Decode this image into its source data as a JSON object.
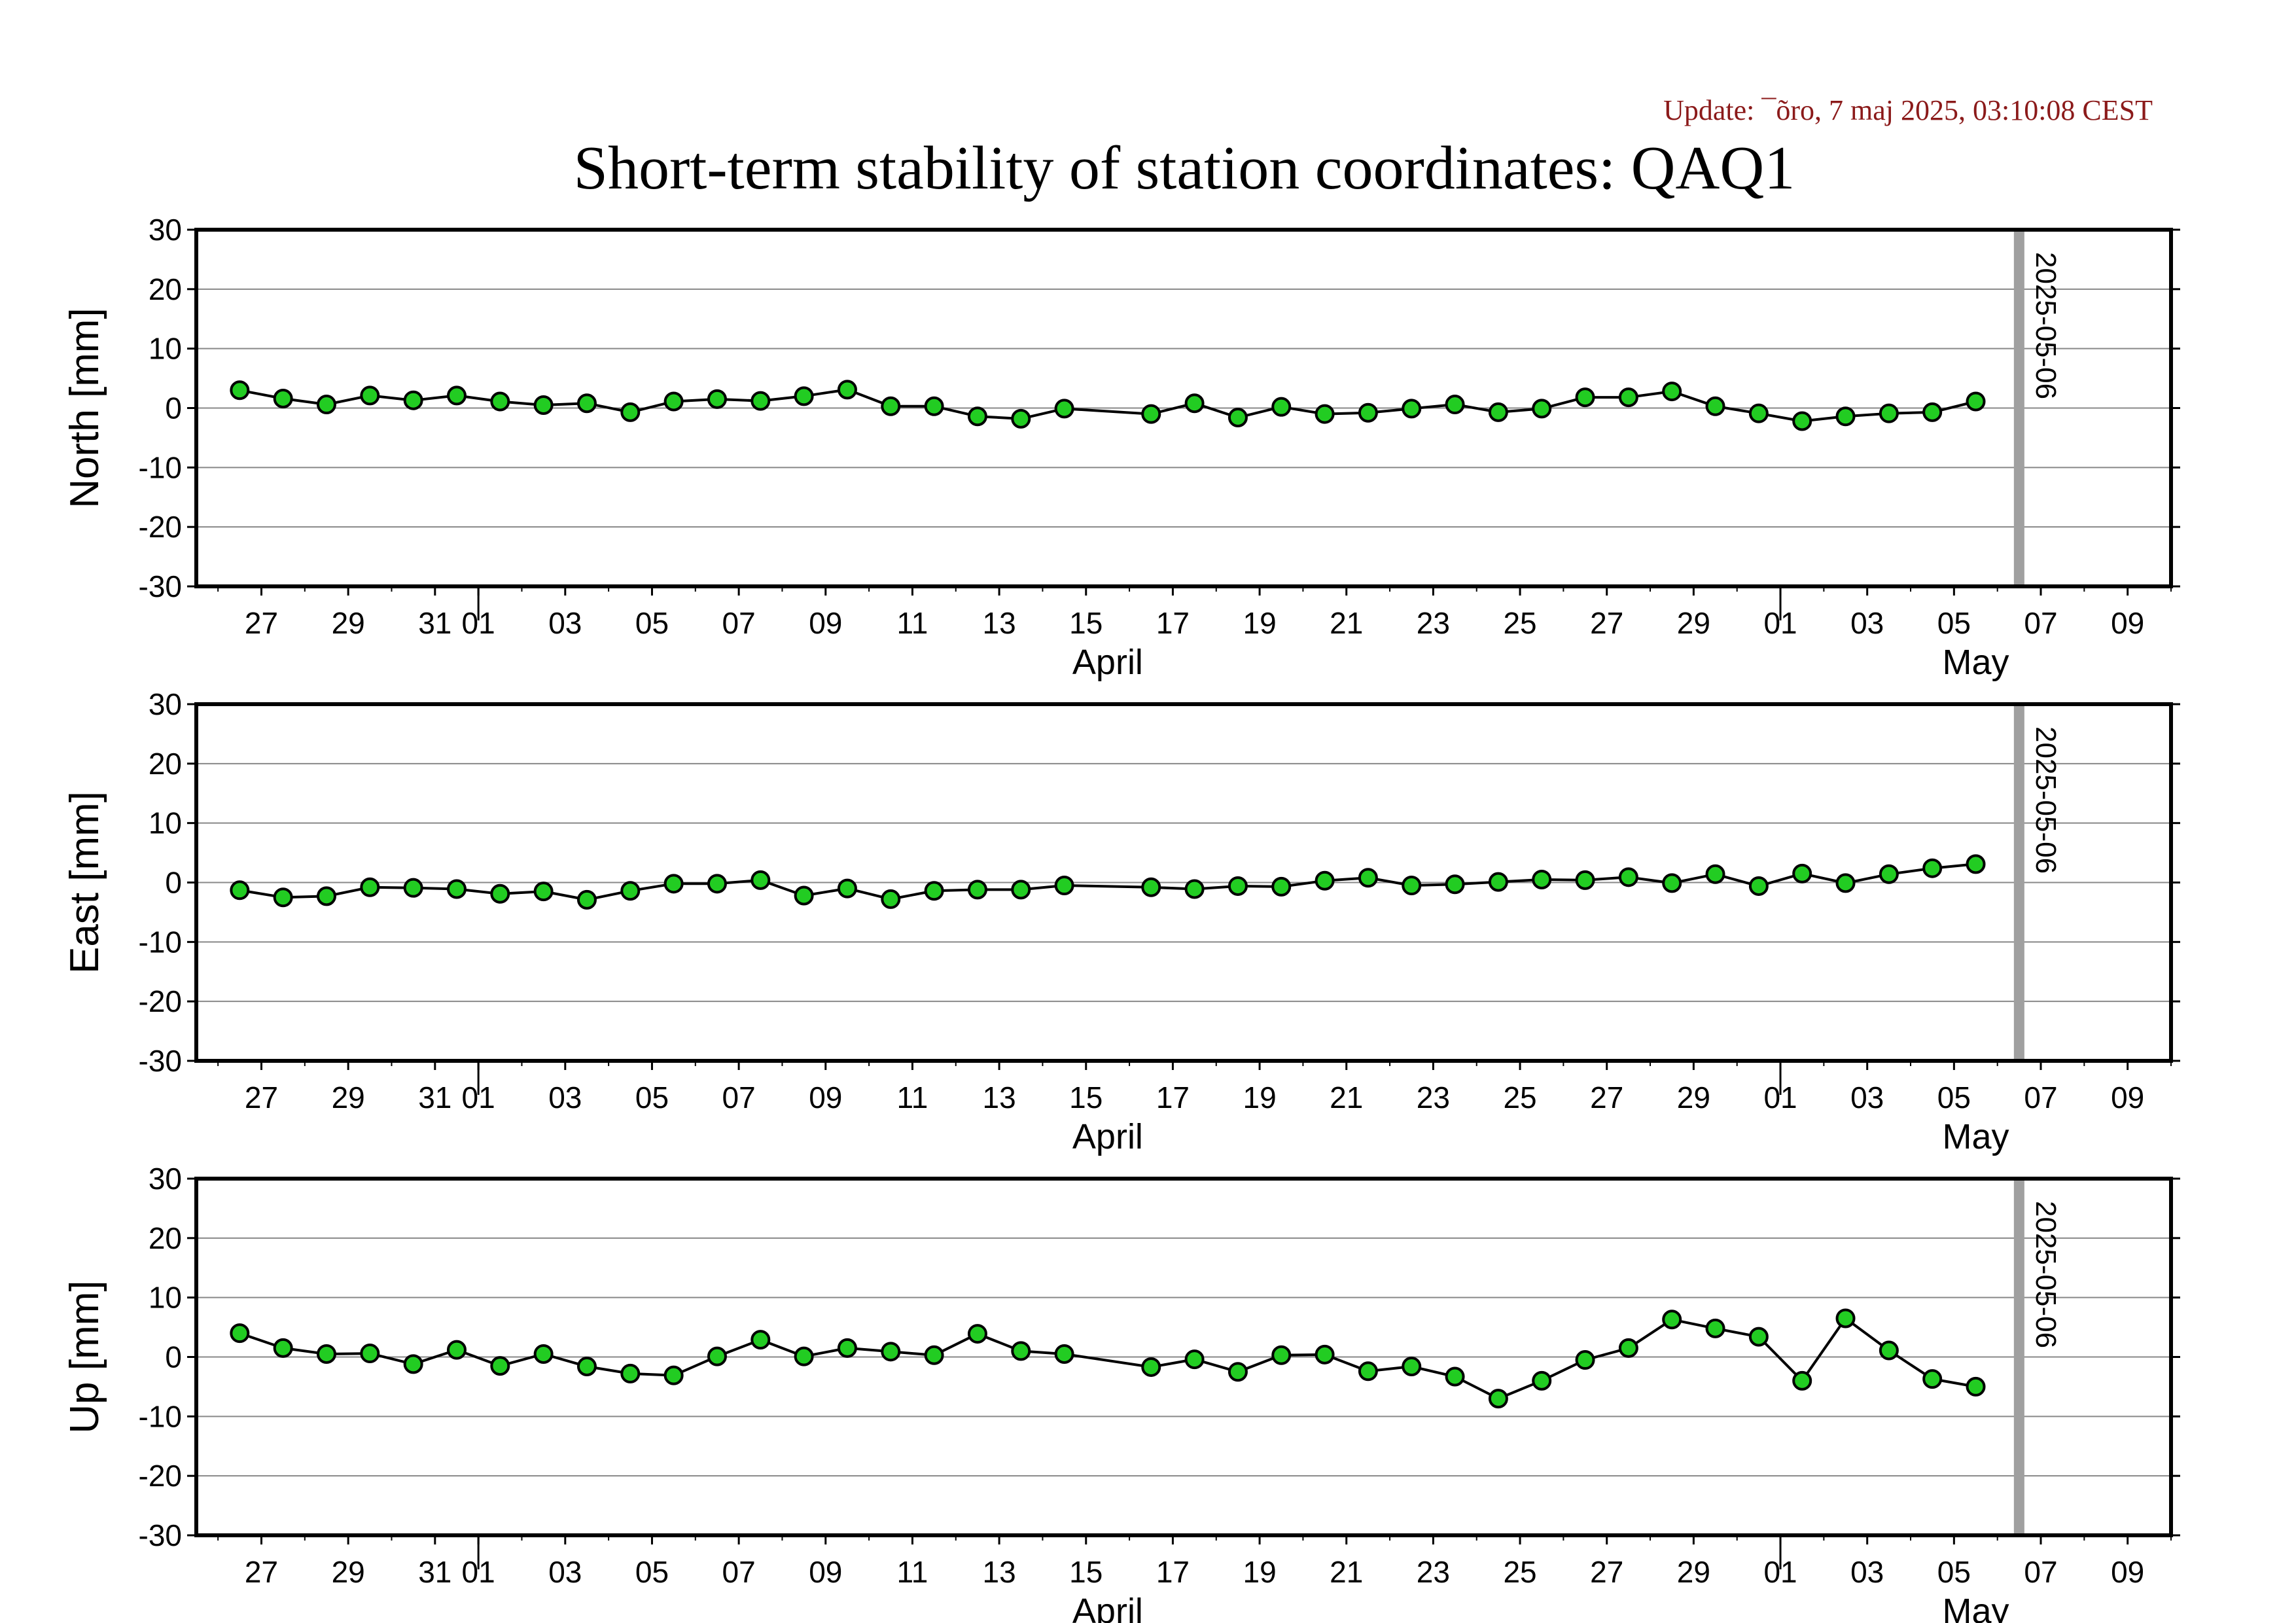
{
  "page": {
    "update_text": "Update: ¯õro, 7 maj 2025, 03:10:08 CEST",
    "title": "Short-term stability of station coordinates: QAQ1",
    "colors": {
      "update_text": "#8b1a1a",
      "marker_fill": "#22cc22",
      "marker_stroke": "#000000",
      "line": "#000000",
      "grid": "#888888",
      "date_bar": "#a0a0a0"
    }
  },
  "chart_data": [
    {
      "type": "line",
      "ylabel": "North [mm]",
      "ylim": [
        -30,
        30
      ],
      "yticks": [
        30,
        20,
        10,
        0,
        -10,
        -20,
        -30
      ],
      "xlim": [
        "2025-03-25T12:00",
        "2025-05-10T00:00"
      ],
      "xticks": [
        "27",
        "29",
        "31",
        "01",
        "03",
        "05",
        "07",
        "09",
        "11",
        "13",
        "15",
        "17",
        "19",
        "21",
        "23",
        "25",
        "27",
        "29",
        "01",
        "03",
        "05",
        "07",
        "09"
      ],
      "month_labels": [
        "April",
        "May"
      ],
      "grid": "horizontal",
      "date_marker": "2025-05-06",
      "series": [
        {
          "x": [
            "2025-03-26",
            "2025-03-27",
            "2025-03-28",
            "2025-03-29",
            "2025-03-30",
            "2025-03-31",
            "2025-04-01",
            "2025-04-02",
            "2025-04-03",
            "2025-04-04",
            "2025-04-05",
            "2025-04-06",
            "2025-04-07",
            "2025-04-08",
            "2025-04-09",
            "2025-04-10",
            "2025-04-11",
            "2025-04-12",
            "2025-04-13",
            "2025-04-14",
            "2025-04-16",
            "2025-04-17",
            "2025-04-18",
            "2025-04-19",
            "2025-04-20",
            "2025-04-21",
            "2025-04-22",
            "2025-04-23",
            "2025-04-24",
            "2025-04-25",
            "2025-04-26",
            "2025-04-27",
            "2025-04-28",
            "2025-04-29",
            "2025-04-30",
            "2025-05-01",
            "2025-05-02",
            "2025-05-03",
            "2025-05-04",
            "2025-05-05"
          ],
          "values": [
            3.0,
            1.6,
            0.6,
            2.1,
            1.3,
            2.1,
            1.1,
            0.5,
            0.8,
            -0.7,
            1.1,
            1.5,
            1.2,
            2.0,
            3.1,
            0.3,
            0.3,
            -1.4,
            -1.8,
            -0.1,
            -1.0,
            0.8,
            -1.6,
            0.2,
            -1.0,
            -0.8,
            -0.1,
            0.6,
            -0.7,
            -0.1,
            1.8,
            1.8,
            2.8,
            0.3,
            -0.9,
            -2.2,
            -1.4,
            -0.9,
            -0.7,
            1.1
          ]
        }
      ]
    },
    {
      "type": "line",
      "ylabel": "East [mm]",
      "ylim": [
        -30,
        30
      ],
      "yticks": [
        30,
        20,
        10,
        0,
        -10,
        -20,
        -30
      ],
      "xlim": [
        "2025-03-25T12:00",
        "2025-05-10T00:00"
      ],
      "xticks": [
        "27",
        "29",
        "31",
        "01",
        "03",
        "05",
        "07",
        "09",
        "11",
        "13",
        "15",
        "17",
        "19",
        "21",
        "23",
        "25",
        "27",
        "29",
        "01",
        "03",
        "05",
        "07",
        "09"
      ],
      "month_labels": [
        "April",
        "May"
      ],
      "grid": "horizontal",
      "date_marker": "2025-05-06",
      "series": [
        {
          "x": [
            "2025-03-26",
            "2025-03-27",
            "2025-03-28",
            "2025-03-29",
            "2025-03-30",
            "2025-03-31",
            "2025-04-01",
            "2025-04-02",
            "2025-04-03",
            "2025-04-04",
            "2025-04-05",
            "2025-04-06",
            "2025-04-07",
            "2025-04-08",
            "2025-04-09",
            "2025-04-10",
            "2025-04-11",
            "2025-04-12",
            "2025-04-13",
            "2025-04-14",
            "2025-04-16",
            "2025-04-17",
            "2025-04-18",
            "2025-04-19",
            "2025-04-20",
            "2025-04-21",
            "2025-04-22",
            "2025-04-23",
            "2025-04-24",
            "2025-04-25",
            "2025-04-26",
            "2025-04-27",
            "2025-04-28",
            "2025-04-29",
            "2025-04-30",
            "2025-05-01",
            "2025-05-02",
            "2025-05-03",
            "2025-05-04",
            "2025-05-05"
          ],
          "values": [
            -1.3,
            -2.5,
            -2.3,
            -0.8,
            -0.9,
            -1.1,
            -1.9,
            -1.5,
            -2.9,
            -1.4,
            -0.2,
            -0.2,
            0.4,
            -2.2,
            -1.0,
            -2.8,
            -1.4,
            -1.2,
            -1.2,
            -0.5,
            -0.8,
            -1.1,
            -0.6,
            -0.7,
            0.3,
            0.8,
            -0.5,
            -0.3,
            0.1,
            0.5,
            0.4,
            0.9,
            -0.1,
            1.4,
            -0.6,
            1.5,
            -0.1,
            1.4,
            2.4,
            3.1
          ]
        }
      ]
    },
    {
      "type": "line",
      "ylabel": "Up [mm]",
      "ylim": [
        -30,
        30
      ],
      "yticks": [
        30,
        20,
        10,
        0,
        -10,
        -20,
        -30
      ],
      "xlim": [
        "2025-03-25T12:00",
        "2025-05-10T00:00"
      ],
      "xticks": [
        "27",
        "29",
        "31",
        "01",
        "03",
        "05",
        "07",
        "09",
        "11",
        "13",
        "15",
        "17",
        "19",
        "21",
        "23",
        "25",
        "27",
        "29",
        "01",
        "03",
        "05",
        "07",
        "09"
      ],
      "month_labels": [
        "April",
        "May"
      ],
      "grid": "horizontal",
      "date_marker": "2025-05-06",
      "series": [
        {
          "x": [
            "2025-03-26",
            "2025-03-27",
            "2025-03-28",
            "2025-03-29",
            "2025-03-30",
            "2025-03-31",
            "2025-04-01",
            "2025-04-02",
            "2025-04-03",
            "2025-04-04",
            "2025-04-05",
            "2025-04-06",
            "2025-04-07",
            "2025-04-08",
            "2025-04-09",
            "2025-04-10",
            "2025-04-11",
            "2025-04-12",
            "2025-04-13",
            "2025-04-14",
            "2025-04-16",
            "2025-04-17",
            "2025-04-18",
            "2025-04-19",
            "2025-04-20",
            "2025-04-21",
            "2025-04-22",
            "2025-04-23",
            "2025-04-24",
            "2025-04-25",
            "2025-04-26",
            "2025-04-27",
            "2025-04-28",
            "2025-04-29",
            "2025-04-30",
            "2025-05-01",
            "2025-05-02",
            "2025-05-03",
            "2025-05-04",
            "2025-05-05"
          ],
          "values": [
            4.0,
            1.5,
            0.5,
            0.6,
            -1.2,
            1.2,
            -1.5,
            0.5,
            -1.6,
            -2.8,
            -3.1,
            0.1,
            2.9,
            0.1,
            1.5,
            0.9,
            0.3,
            3.9,
            1.0,
            0.5,
            -1.7,
            -0.4,
            -2.5,
            0.3,
            0.4,
            -2.4,
            -1.6,
            -3.3,
            -7.0,
            -4.0,
            -0.5,
            1.5,
            6.3,
            4.8,
            3.4,
            -4.0,
            6.5,
            1.1,
            -3.7,
            -5.0
          ]
        }
      ]
    }
  ]
}
